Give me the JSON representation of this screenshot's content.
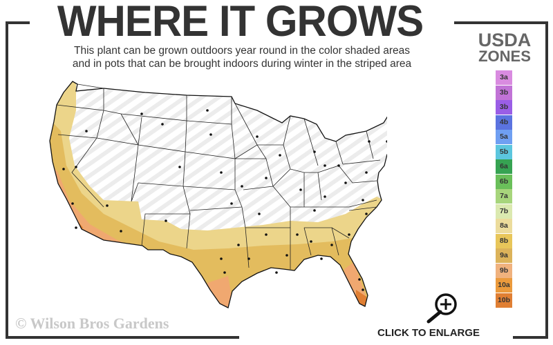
{
  "title": "WHERE IT GROWS",
  "subtitle_line1": "This plant can be grown outdoors year round in the color shaded areas",
  "subtitle_line2": "and in pots that can be brought indoors during winter in the striped area",
  "legend": {
    "title_line1": "USDA",
    "title_line2": "ZONES",
    "zones": [
      {
        "label": "3a",
        "color": "#d98be0"
      },
      {
        "label": "3b",
        "color": "#c173d6"
      },
      {
        "label": "3b",
        "color": "#9a5ee6"
      },
      {
        "label": "4b",
        "color": "#5b73e0"
      },
      {
        "label": "5a",
        "color": "#6f9ff2"
      },
      {
        "label": "5b",
        "color": "#5cc6de"
      },
      {
        "label": "6a",
        "color": "#36a352"
      },
      {
        "label": "6b",
        "color": "#6abf5a"
      },
      {
        "label": "7a",
        "color": "#a7d57c"
      },
      {
        "label": "7b",
        "color": "#dbe9b0"
      },
      {
        "label": "8a",
        "color": "#ecdc9c"
      },
      {
        "label": "8b",
        "color": "#e8c65a"
      },
      {
        "label": "9a",
        "color": "#dcb35a"
      },
      {
        "label": "9b",
        "color": "#f0b27e"
      },
      {
        "label": "10a",
        "color": "#eb9a3c"
      },
      {
        "label": "10b",
        "color": "#e07f33"
      }
    ]
  },
  "map": {
    "region": "contiguous United States",
    "shaded_zones": [
      "8a",
      "8b",
      "9a",
      "9b",
      "10a",
      "10b"
    ],
    "striped_meaning": "pots brought indoors during winter"
  },
  "copyright": "© Wilson Bros Gardens",
  "enlarge": {
    "label": "CLICK TO ENLARGE",
    "icon": "zoom-in-magnifier-icon"
  }
}
